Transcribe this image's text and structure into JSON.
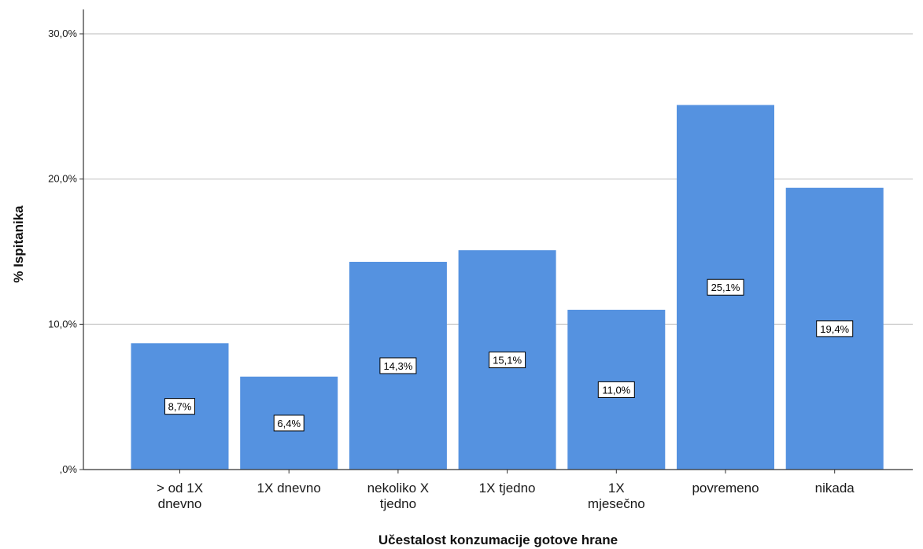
{
  "chart_data": {
    "type": "bar",
    "categories": [
      [
        "> od 1X",
        "dnevno"
      ],
      [
        "1X dnevno"
      ],
      [
        "nekoliko X",
        "tjedno"
      ],
      [
        "1X tjedno"
      ],
      [
        "1X",
        "mjesečno"
      ],
      [
        "povremeno"
      ],
      [
        "nikada"
      ]
    ],
    "values": [
      8.7,
      6.4,
      14.3,
      15.1,
      11.0,
      25.1,
      19.4
    ],
    "data_labels": [
      "8,7%",
      "6,4%",
      "14,3%",
      "15,1%",
      "11,0%",
      "25,1%",
      "19,4%"
    ],
    "xlabel": "Učestalost konzumacije gotove hrane",
    "ylabel": "% Ispitanika",
    "ylim": [
      0,
      30
    ],
    "yticks": [
      0,
      10,
      20,
      30
    ],
    "ytick_labels": [
      ",0%",
      "10,0%",
      "20,0%",
      "30,0%"
    ],
    "grid": true,
    "bar_color": "#5592e0"
  }
}
